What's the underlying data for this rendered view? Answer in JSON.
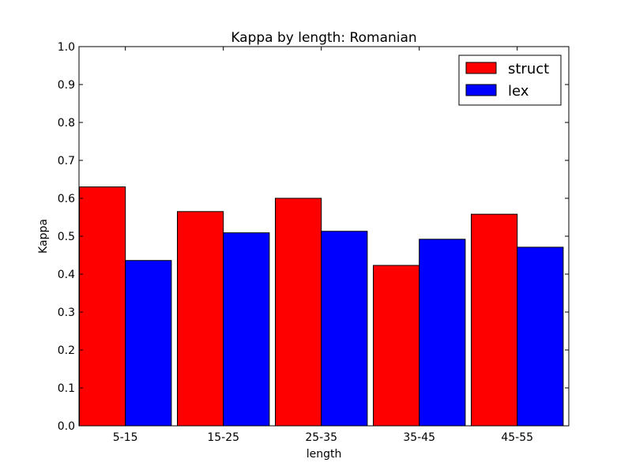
{
  "chart_data": {
    "type": "bar",
    "title": "Kappa by length: Romanian",
    "xlabel": "length",
    "ylabel": "Kappa",
    "categories": [
      "5-15",
      "15-25",
      "25-35",
      "35-45",
      "45-55"
    ],
    "series": [
      {
        "name": "struct",
        "color": "#ff0000",
        "values": [
          0.63,
          0.565,
          0.6,
          0.423,
          0.558
        ]
      },
      {
        "name": "lex",
        "color": "#0000ff",
        "values": [
          0.436,
          0.509,
          0.513,
          0.492,
          0.471
        ]
      }
    ],
    "ylim": [
      0.0,
      1.0
    ],
    "yticks": [
      "0.0",
      "0.1",
      "0.2",
      "0.3",
      "0.4",
      "0.5",
      "0.6",
      "0.7",
      "0.8",
      "0.9",
      "1.0"
    ],
    "grid": false,
    "legend_position": "top-right"
  }
}
